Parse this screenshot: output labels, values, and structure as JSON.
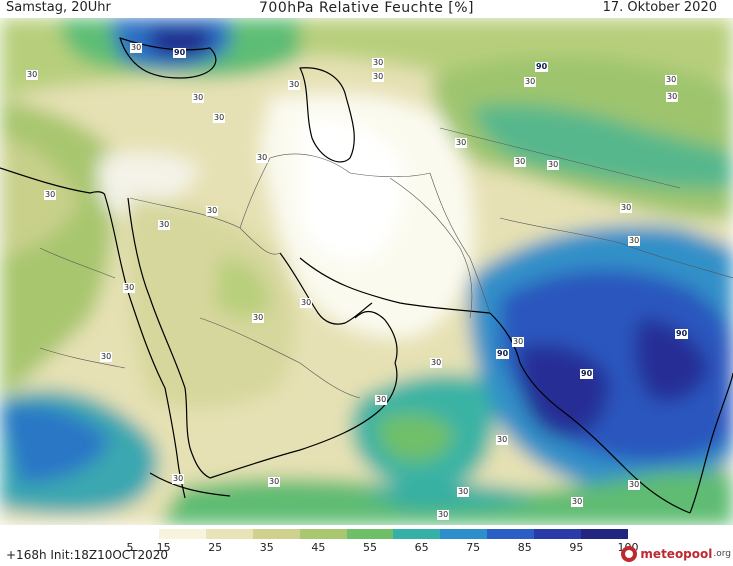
{
  "header": {
    "left": "Samstag, 20Uhr",
    "title": "700hPa Relative Feuchte [%]",
    "date": "17. Oktober 2020"
  },
  "footer": {
    "run": "+168h  Init:18Z10OCT2020",
    "logo_text": "meteopool",
    "logo_suffix": ".org"
  },
  "colorbar": {
    "ticks": [
      "5",
      "15",
      "25",
      "35",
      "45",
      "55",
      "65",
      "75",
      "85",
      "95",
      "100"
    ],
    "colors": [
      "#ffffff",
      "#f7f4dd",
      "#e9e3b8",
      "#cfd28f",
      "#a9c770",
      "#6fbf69",
      "#35b0a6",
      "#2c8fcb",
      "#2b5ec6",
      "#2a3aa8",
      "#232680"
    ]
  },
  "map": {
    "contour_labels": [
      "90",
      "30",
      "30",
      "30",
      "30",
      "30",
      "30",
      "30",
      "30",
      "30",
      "30",
      "30",
      "30",
      "30",
      "30",
      "30",
      "30",
      "30",
      "30",
      "30",
      "30",
      "30",
      "30",
      "30",
      "30",
      "30",
      "90",
      "90",
      "90",
      "90",
      "30",
      "30",
      "30",
      "30",
      "30",
      "30",
      "30",
      "30"
    ]
  }
}
